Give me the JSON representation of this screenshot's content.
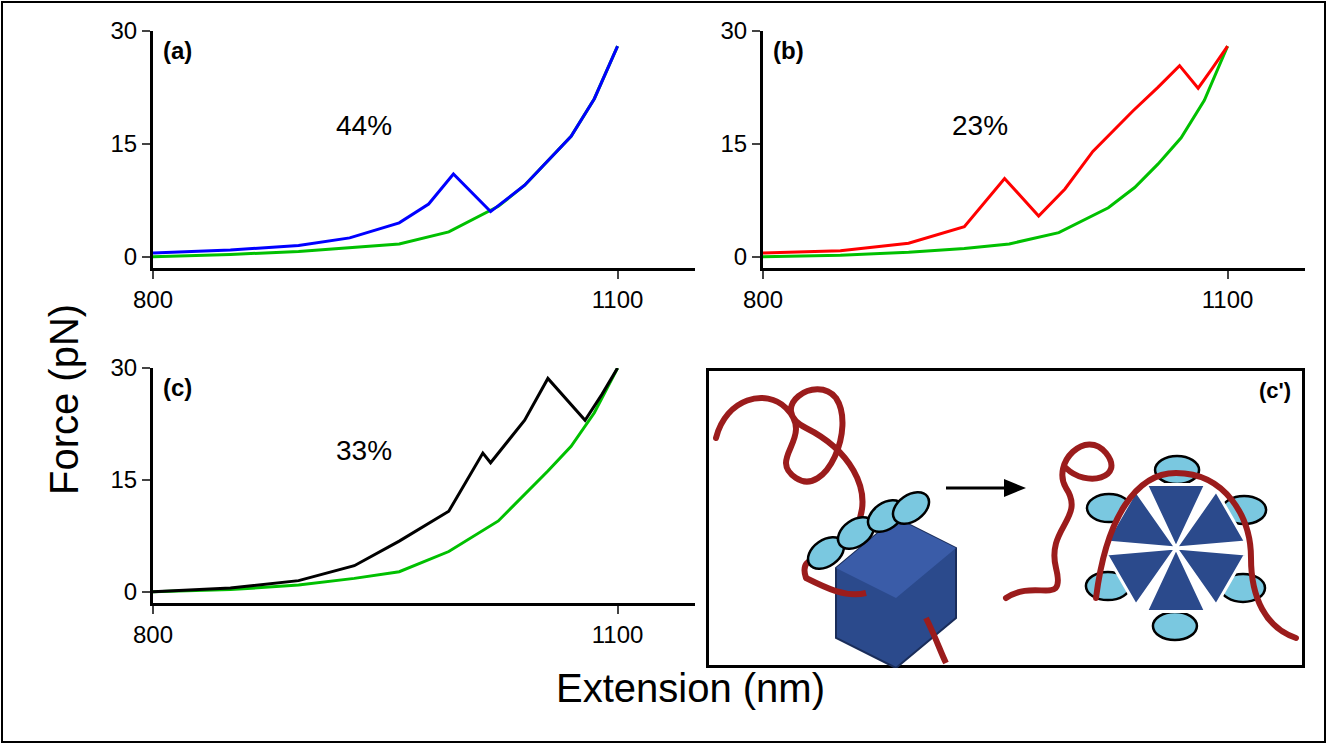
{
  "chart_data": [
    {
      "type": "line",
      "title": "(a)",
      "annotations": [
        {
          "text": "44%",
          "x": 936,
          "y": 17.4
        }
      ],
      "xlim": [
        800,
        1150
      ],
      "ylim": [
        -1.5,
        30
      ],
      "xticks": [
        800,
        1100
      ],
      "yticks": [
        0,
        15,
        30
      ],
      "series": [
        {
          "color": "#00c000",
          "x": [
            800,
            850,
            894,
            930,
            959,
            991,
            1023,
            1040,
            1055,
            1070,
            1085,
            1100
          ],
          "values": [
            0,
            0.3,
            0.7,
            1.2,
            1.7,
            3.3,
            6.7,
            9.5,
            12.7,
            16,
            21,
            28
          ]
        },
        {
          "color": "#0000ff",
          "x": [
            800,
            850,
            894,
            927,
            959,
            978,
            994,
            1018,
            1040,
            1055,
            1070,
            1085,
            1100
          ],
          "values": [
            0.5,
            0.9,
            1.5,
            2.5,
            4.5,
            7,
            11,
            6,
            9.5,
            12.7,
            16,
            21,
            28
          ]
        }
      ]
    },
    {
      "type": "line",
      "title": "(b)",
      "annotations": [
        {
          "text": "23%",
          "x": 940,
          "y": 17.4
        }
      ],
      "xlim": [
        800,
        1150
      ],
      "ylim": [
        -1.5,
        30
      ],
      "xticks": [
        800,
        1100
      ],
      "yticks": [
        0,
        15,
        30
      ],
      "series": [
        {
          "color": "#00c000",
          "x": [
            800,
            850,
            894,
            930,
            959,
            991,
            1023,
            1040,
            1055,
            1070,
            1085,
            1100
          ],
          "values": [
            0,
            0.2,
            0.6,
            1.1,
            1.7,
            3.2,
            6.5,
            9.2,
            12.3,
            15.8,
            20.8,
            28
          ]
        },
        {
          "color": "#ff0000",
          "x": [
            800,
            850,
            894,
            930,
            956,
            978,
            995,
            1013,
            1039,
            1055,
            1069,
            1081,
            1090,
            1100
          ],
          "values": [
            0.5,
            0.8,
            1.8,
            4,
            10.4,
            5.4,
            9,
            14,
            19.4,
            22.5,
            25.4,
            22.4,
            25,
            28
          ]
        }
      ]
    },
    {
      "type": "line",
      "title": "(c)",
      "annotations": [
        {
          "text": "33%",
          "x": 936,
          "y": 19
        }
      ],
      "xlim": [
        800,
        1150
      ],
      "ylim": [
        -1.5,
        30
      ],
      "xticks": [
        800,
        1100
      ],
      "yticks": [
        0,
        15,
        30
      ],
      "series": [
        {
          "color": "#00c000",
          "x": [
            800,
            850,
            894,
            930,
            959,
            991,
            1023,
            1055,
            1070,
            1085,
            1100
          ],
          "values": [
            0,
            0.3,
            0.9,
            1.8,
            2.7,
            5.4,
            9.5,
            16.2,
            19.5,
            24,
            30
          ]
        },
        {
          "color": "#000000",
          "x": [
            800,
            850,
            894,
            930,
            959,
            991,
            1013,
            1018,
            1040,
            1055,
            1079,
            1090,
            1100
          ],
          "values": [
            0,
            0.5,
            1.5,
            3.5,
            6.8,
            10.8,
            18.6,
            17.3,
            23,
            28.6,
            23,
            26.5,
            30
          ]
        }
      ]
    }
  ],
  "x_label": "Extension (nm)",
  "y_label": "Force (pN)",
  "inset_label": "(c')"
}
